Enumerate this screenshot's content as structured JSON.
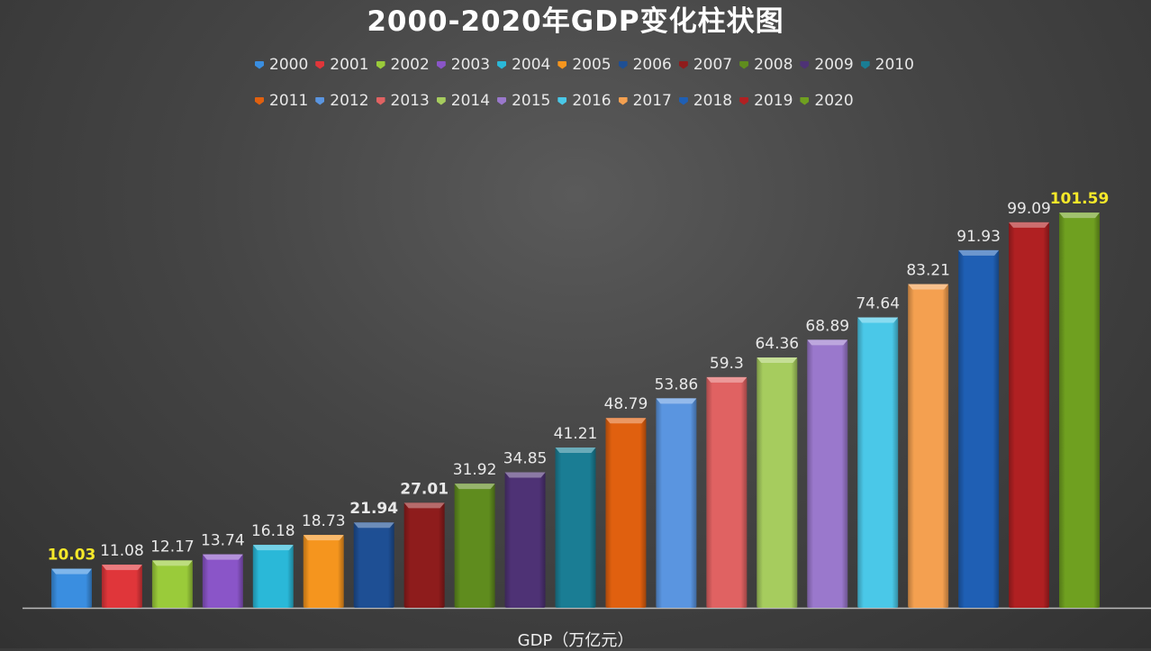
{
  "chart_data": {
    "type": "bar",
    "title": "2000-2020年GDP变化柱状图",
    "xlabel": "GDP（万亿元）",
    "ylabel": "",
    "ylim": [
      0,
      105
    ],
    "grid": false,
    "legend_position": "top",
    "categories": [
      "2000",
      "2001",
      "2002",
      "2003",
      "2004",
      "2005",
      "2006",
      "2007",
      "2008",
      "2009",
      "2010",
      "2011",
      "2012",
      "2013",
      "2014",
      "2015",
      "2016",
      "2017",
      "2018",
      "2019",
      "2020"
    ],
    "values": [
      10.03,
      11.08,
      12.17,
      13.74,
      16.18,
      18.73,
      21.94,
      27.01,
      31.92,
      34.85,
      41.21,
      48.79,
      53.86,
      59.3,
      64.36,
      68.89,
      74.64,
      83.21,
      91.93,
      99.09,
      101.59
    ],
    "data_labels": [
      "10.03",
      "11.08",
      "12.17",
      "13.74",
      "16.18",
      "18.73",
      "21.94",
      "27.01",
      "31.92",
      "34.85",
      "41.21",
      "48.79",
      "53.86",
      "59.3",
      "64.36",
      "68.89",
      "74.64",
      "83.21",
      "91.93",
      "99.09",
      "101.59"
    ],
    "colors": [
      "#3a8ee0",
      "#e0363a",
      "#9acb3a",
      "#8a55c8",
      "#2ab8d8",
      "#f5951e",
      "#1e4f94",
      "#8e1c1c",
      "#5f8c1e",
      "#4e3275",
      "#1a7d94",
      "#e0600f",
      "#5a95e0",
      "#e06262",
      "#a6cc5e",
      "#9a78cc",
      "#4ac8e8",
      "#f4a050",
      "#1f5fb4",
      "#b02022",
      "#6fa020"
    ],
    "highlight_labels": {
      "0": "#f5e82a",
      "20": "#f5e82a"
    },
    "bold_labels": [
      0,
      6,
      7,
      20
    ]
  }
}
